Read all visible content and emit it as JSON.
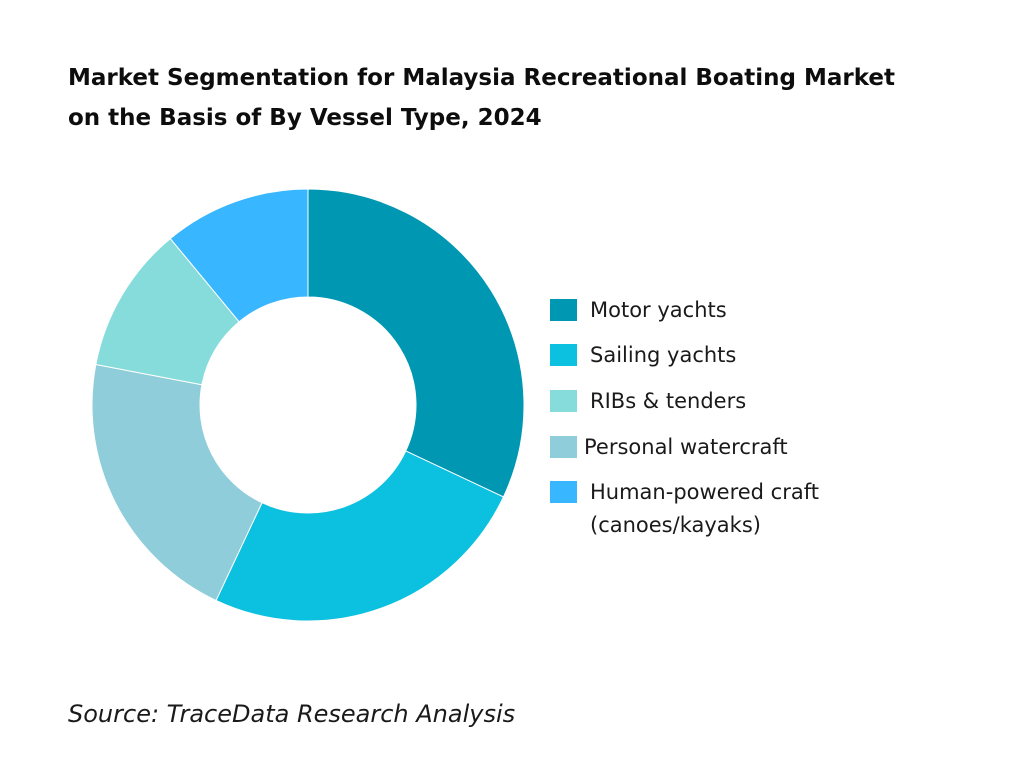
{
  "title_lines": [
    "Market Segmentation for Malaysia Recreational Boating Market",
    "on the Basis of By Vessel Type, 2024"
  ],
  "source": "Source: TraceData Research Analysis",
  "chart_data": {
    "type": "pie",
    "donut": true,
    "title": "Market Segmentation for Malaysia Recreational Boating Market on the Basis of By Vessel Type, 2024",
    "categories": [
      "Motor yachts",
      "Sailing yachts",
      "RIBs & tenders",
      "Personal watercraft",
      "Human-powered craft (canoes/kayaks)"
    ],
    "values": [
      32,
      25,
      11,
      21,
      11
    ],
    "plot_order": [
      0,
      1,
      3,
      2,
      4
    ],
    "colors": [
      "#0097B2",
      "#0CC0DF",
      "#86DCDA",
      "#8ECDD9",
      "#38B6FF"
    ],
    "legend_position": "right",
    "legend": [
      {
        "label_lines": [
          "Motor yachts"
        ],
        "color": "#0097B2"
      },
      {
        "label_lines": [
          "Sailing yachts"
        ],
        "color": "#0CC0DF"
      },
      {
        "label_lines": [
          "RIBs & tenders"
        ],
        "color": "#86DCDA"
      },
      {
        "label_lines": [
          "Personal watercraft"
        ],
        "color": "#8ECDD9"
      },
      {
        "label_lines": [
          "Human-powered craft",
          "(canoes/kayaks)"
        ],
        "color": "#38B6FF"
      }
    ]
  }
}
